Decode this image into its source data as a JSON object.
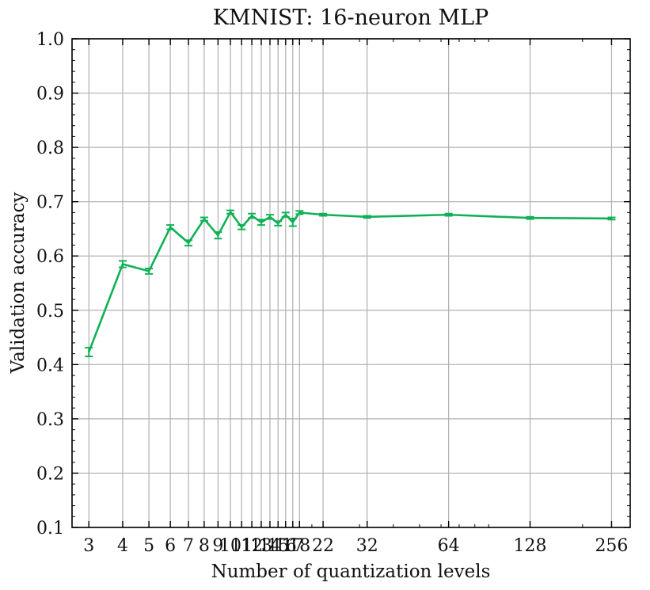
{
  "chart_data": {
    "type": "line",
    "title": "KMNIST: 16-neuron MLP",
    "xlabel": "Number of quantization levels",
    "ylabel": "Validation accuracy",
    "xscale": "log2",
    "xlim": [
      2.6,
      300
    ],
    "ylim": [
      0.1,
      1.0
    ],
    "grid": true,
    "xticks": [
      3,
      4,
      5,
      6,
      7,
      8,
      9,
      10,
      11,
      12,
      13,
      14,
      15,
      16,
      17,
      18,
      22,
      32,
      64,
      128,
      256
    ],
    "yticks": [
      0.1,
      0.2,
      0.3,
      0.4,
      0.5,
      0.6,
      0.7,
      0.8,
      0.9,
      1.0
    ],
    "ytick_labels": [
      "0.1",
      "0.2",
      "0.3",
      "0.4",
      "0.5",
      "0.6",
      "0.7",
      "0.8",
      "0.9",
      "1.0"
    ],
    "series": [
      {
        "name": "KMNIST 16-neuron MLP",
        "color": "#10b156",
        "x": [
          3,
          4,
          5,
          6,
          7,
          8,
          9,
          10,
          11,
          12,
          13,
          14,
          15,
          16,
          17,
          18,
          22,
          32,
          64,
          128,
          256
        ],
        "y": [
          0.423,
          0.585,
          0.572,
          0.653,
          0.624,
          0.668,
          0.638,
          0.681,
          0.653,
          0.674,
          0.662,
          0.672,
          0.66,
          0.676,
          0.662,
          0.68,
          0.676,
          0.672,
          0.676,
          0.67,
          0.669
        ],
        "err": [
          0.008,
          0.006,
          0.005,
          0.004,
          0.005,
          0.003,
          0.006,
          0.003,
          0.004,
          0.004,
          0.005,
          0.004,
          0.004,
          0.004,
          0.007,
          0.003,
          0.002,
          0.002,
          0.002,
          0.002,
          0.002
        ]
      }
    ]
  }
}
